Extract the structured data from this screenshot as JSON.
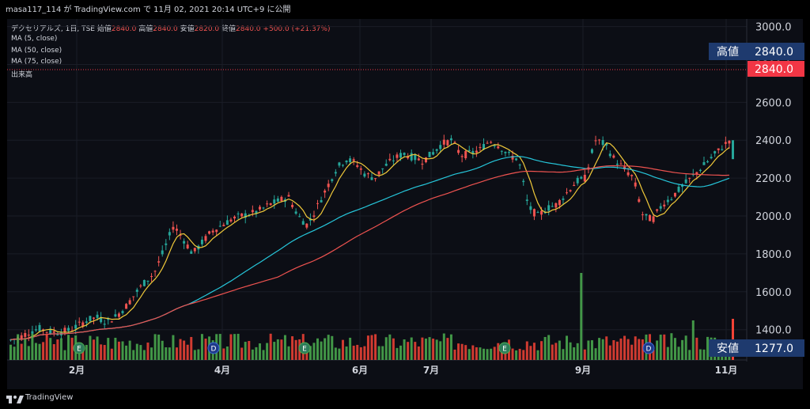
{
  "header": {
    "publisher_line": "masa117_114 が TradingView.com で 11月 02, 2021 20:14 UTC+9 に公開"
  },
  "legend": {
    "symbol": "デクセリアルズ, 1日, TSE",
    "open_label": "始値",
    "open_value": "2840.0",
    "high_label": "高値",
    "high_value": "2840.0",
    "low_label": "安値",
    "low_value": "2820.0",
    "close_label": "終値",
    "close_value": "2840.0",
    "change": "+500.0 (+21.37%)",
    "ma5": "MA (5, close)",
    "ma50": "MA (50, close)",
    "ma75": "MA (75, close)",
    "volume": "出来高"
  },
  "price_labels": {
    "high_tag": "高値",
    "high_value": "2840.0",
    "last_value": "2840.0",
    "low_tag": "安値",
    "low_value": "1277.0"
  },
  "footer": {
    "brand": "TradingView"
  },
  "colors": {
    "up": "#26a69a",
    "down": "#ef5350",
    "vol_up": "#4caf50",
    "vol_down": "#f44336",
    "ma5": "#f0c93a",
    "ma50": "#26c6da",
    "ma75": "#ef5350",
    "tag_navy": "#1e3a6e",
    "tag_red": "#f23645"
  },
  "chart_data": {
    "type": "candlestick",
    "ylim": [
      1240,
      3040
    ],
    "y_ticks": [
      "1400.0",
      "1600.0",
      "1800.0",
      "2000.0",
      "2200.0",
      "2400.0",
      "2600.0",
      "2800.0",
      "3000.0"
    ],
    "x_tick_labels": [
      "2月",
      "4月",
      "6月",
      "7月",
      "9月",
      "11月"
    ],
    "event_markers": [
      "E",
      "D",
      "E",
      "E",
      "D"
    ],
    "close_path": [
      1345,
      1360,
      1390,
      1405,
      1390,
      1385,
      1395,
      1420,
      1450,
      1465,
      1440,
      1470,
      1520,
      1590,
      1650,
      1700,
      1820,
      1950,
      1880,
      1800,
      1860,
      1920,
      1950,
      1980,
      2000,
      2010,
      2030,
      2060,
      2080,
      2100,
      2000,
      1950,
      2050,
      2150,
      2250,
      2300,
      2280,
      2220,
      2200,
      2260,
      2300,
      2330,
      2310,
      2290,
      2330,
      2380,
      2400,
      2320,
      2330,
      2350,
      2400,
      2370,
      2320,
      2300,
      2050,
      2000,
      2040,
      2060,
      2120,
      2180,
      2200,
      2400,
      2380,
      2300,
      2250,
      2200,
      2000,
      1980,
      2060,
      2100,
      2150,
      2200,
      2250,
      2300,
      2350,
      2400
    ],
    "ma_end_values": {
      "ma5": 2400,
      "ma50": 2200,
      "ma75": 2230
    },
    "last_close": 2840,
    "low_marker": 1277
  }
}
